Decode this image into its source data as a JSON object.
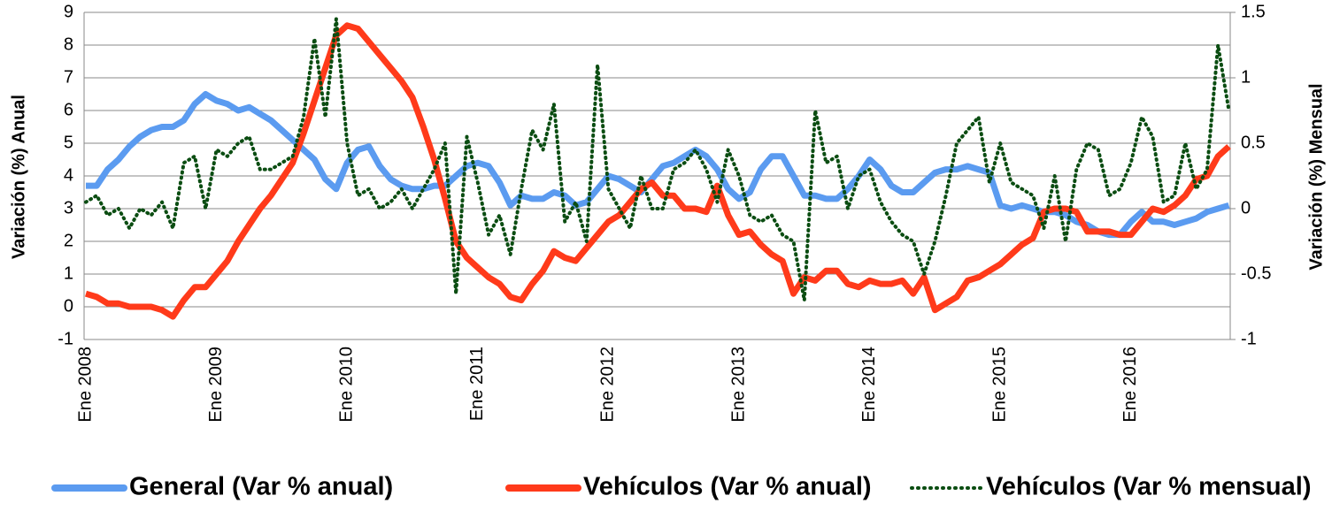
{
  "chart_data": {
    "type": "line",
    "ylabel": "Variación (%) Anual",
    "y2label": "Variación (%) Mensual",
    "categories": [
      "Ene 2008",
      null,
      null,
      null,
      null,
      null,
      null,
      null,
      null,
      null,
      null,
      null,
      "Ene 2009",
      null,
      null,
      null,
      null,
      null,
      null,
      null,
      null,
      null,
      null,
      null,
      "Ene 2010",
      null,
      null,
      null,
      null,
      null,
      null,
      null,
      null,
      null,
      null,
      null,
      "Ene 2011",
      null,
      null,
      null,
      null,
      null,
      null,
      null,
      null,
      null,
      null,
      null,
      "Ene 2012",
      null,
      null,
      null,
      null,
      null,
      null,
      null,
      null,
      null,
      null,
      null,
      "Ene 2013",
      null,
      null,
      null,
      null,
      null,
      null,
      null,
      null,
      null,
      null,
      null,
      "Ene 2014",
      null,
      null,
      null,
      null,
      null,
      null,
      null,
      null,
      null,
      null,
      null,
      "Ene 2015",
      null,
      null,
      null,
      null,
      null,
      null,
      null,
      null,
      null,
      null,
      null,
      "Ene 2016",
      null,
      null,
      null,
      null,
      null,
      null,
      null,
      null,
      null
    ],
    "series": [
      {
        "name": "General (Var % anual)",
        "color": "#5b9bf0",
        "style": "solid",
        "axis": "y",
        "values": [
          3.7,
          3.7,
          4.2,
          4.5,
          4.9,
          5.2,
          5.4,
          5.5,
          5.5,
          5.7,
          6.2,
          6.5,
          6.3,
          6.2,
          6.0,
          6.1,
          5.9,
          5.7,
          5.4,
          5.1,
          4.8,
          4.5,
          3.9,
          3.6,
          4.4,
          4.8,
          4.9,
          4.3,
          3.9,
          3.7,
          3.6,
          3.6,
          3.7,
          3.7,
          4.0,
          4.3,
          4.4,
          4.3,
          3.8,
          3.1,
          3.4,
          3.3,
          3.3,
          3.5,
          3.4,
          3.1,
          3.2,
          3.6,
          4.0,
          3.9,
          3.7,
          3.5,
          3.9,
          4.3,
          4.4,
          4.6,
          4.8,
          4.6,
          4.2,
          3.6,
          3.3,
          3.5,
          4.2,
          4.6,
          4.6,
          4.0,
          3.4,
          3.4,
          3.3,
          3.3,
          3.6,
          4.0,
          4.5,
          4.2,
          3.7,
          3.5,
          3.5,
          3.8,
          4.1,
          4.2,
          4.2,
          4.3,
          4.2,
          4.1,
          3.1,
          3.0,
          3.1,
          3.0,
          2.9,
          2.9,
          2.8,
          2.6,
          2.5,
          2.3,
          2.2,
          2.2,
          2.6,
          2.9,
          2.6,
          2.6,
          2.5,
          2.6,
          2.7,
          2.9,
          3.0,
          3.1
        ]
      },
      {
        "name": "Vehículos (Var % anual)",
        "color": "#ff3a1a",
        "style": "solid",
        "axis": "y",
        "values": [
          0.4,
          0.3,
          0.1,
          0.1,
          0.0,
          0.0,
          0.0,
          -0.1,
          -0.3,
          0.2,
          0.6,
          0.6,
          1.0,
          1.4,
          2.0,
          2.5,
          3.0,
          3.4,
          3.9,
          4.4,
          5.3,
          6.3,
          7.3,
          8.3,
          8.6,
          8.5,
          8.1,
          7.7,
          7.3,
          6.9,
          6.4,
          5.5,
          4.5,
          3.3,
          2.0,
          1.5,
          1.2,
          0.9,
          0.7,
          0.3,
          0.2,
          0.7,
          1.1,
          1.7,
          1.5,
          1.4,
          1.8,
          2.2,
          2.6,
          2.8,
          3.2,
          3.6,
          3.8,
          3.4,
          3.4,
          3.0,
          3.0,
          2.9,
          3.7,
          2.8,
          2.2,
          2.3,
          1.9,
          1.6,
          1.4,
          0.4,
          0.9,
          0.8,
          1.1,
          1.1,
          0.7,
          0.6,
          0.8,
          0.7,
          0.7,
          0.8,
          0.4,
          0.9,
          -0.1,
          0.1,
          0.3,
          0.8,
          0.9,
          1.1,
          1.3,
          1.6,
          1.9,
          2.1,
          2.9,
          3.0,
          3.0,
          2.9,
          2.3,
          2.3,
          2.3,
          2.2,
          2.2,
          2.6,
          3.0,
          2.9,
          3.1,
          3.4,
          3.9,
          4.0,
          4.6,
          4.9
        ]
      },
      {
        "name": "Vehículos (Var % mensual)",
        "color": "#0b4d12",
        "style": "dotted",
        "axis": "y2",
        "values": [
          0.05,
          0.1,
          -0.05,
          0.0,
          -0.15,
          0.0,
          -0.05,
          0.05,
          -0.15,
          0.35,
          0.4,
          0.0,
          0.45,
          0.4,
          0.5,
          0.55,
          0.3,
          0.3,
          0.35,
          0.4,
          0.7,
          1.3,
          0.7,
          1.45,
          0.5,
          0.1,
          0.15,
          0.0,
          0.05,
          0.15,
          0.0,
          0.15,
          0.3,
          0.5,
          -0.65,
          0.55,
          0.2,
          -0.2,
          -0.05,
          -0.35,
          0.15,
          0.6,
          0.45,
          0.8,
          -0.1,
          0.05,
          -0.25,
          1.1,
          0.15,
          0.0,
          -0.15,
          0.25,
          0.0,
          0.0,
          0.3,
          0.35,
          0.45,
          0.3,
          0.05,
          0.45,
          0.25,
          -0.05,
          -0.1,
          -0.05,
          -0.2,
          -0.25,
          -0.7,
          0.75,
          0.35,
          0.4,
          0.0,
          0.25,
          0.3,
          0.05,
          -0.1,
          -0.2,
          -0.25,
          -0.5,
          -0.25,
          0.1,
          0.5,
          0.6,
          0.7,
          0.2,
          0.5,
          0.2,
          0.15,
          0.1,
          -0.15,
          0.25,
          -0.25,
          0.3,
          0.5,
          0.45,
          0.1,
          0.15,
          0.35,
          0.7,
          0.55,
          0.05,
          0.1,
          0.5,
          0.15,
          0.3,
          1.25,
          0.75
        ]
      }
    ],
    "ylim": [
      -1,
      9
    ],
    "yticks": [
      -1,
      0,
      1,
      2,
      3,
      4,
      5,
      6,
      7,
      8,
      9
    ],
    "y2lim": [
      -1,
      1.5
    ],
    "y2ticks": [
      -1,
      -0.5,
      0,
      0.5,
      1,
      1.5
    ],
    "grid": true,
    "legend": "bottom"
  }
}
